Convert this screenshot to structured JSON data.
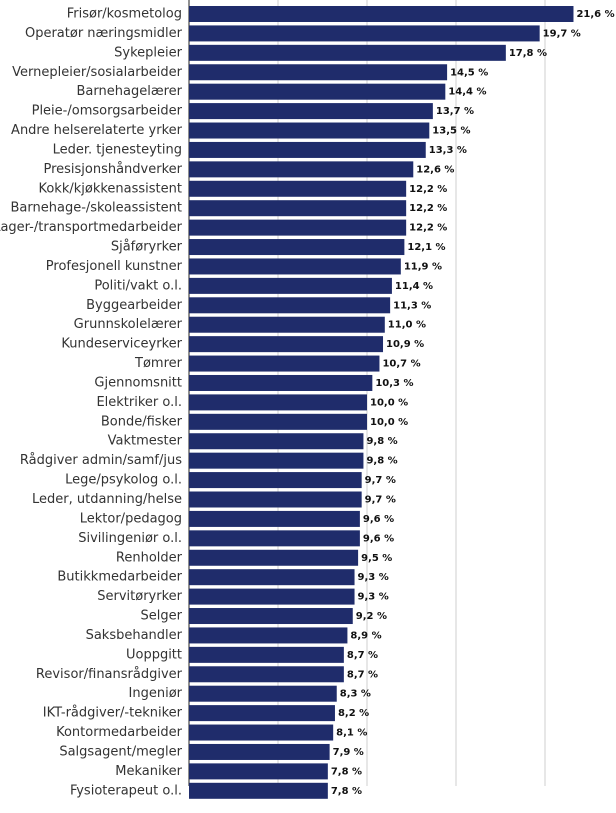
{
  "chart_data": {
    "type": "bar",
    "orientation": "horizontal",
    "categories": [
      "Frisør/kosmetolog",
      "Operatør næringsmidler",
      "Sykepleier",
      "Vernepleier/sosialarbeider",
      "Barnehagelærer",
      "Pleie-/omsorgsarbeider",
      "Andre helserelaterte yrker",
      "Leder. tjenesteyting",
      "Presisjonshåndverker",
      "Kokk/kjøkkenassistent",
      "Barnehage-/skoleassistent",
      "Lager-/transportmedarbeider",
      "Sjåføryrker",
      "Profesjonell kunstner",
      "Politi/vakt o.l.",
      "Byggearbeider",
      "Grunnskolelærer",
      "Kundeserviceyrker",
      "Tømrer",
      "Gjennomsnitt",
      "Elektriker o.l.",
      "Bonde/fisker",
      "Vaktmester",
      "Rådgiver admin/samf/jus",
      "Lege/psykolog o.l.",
      "Leder, utdanning/helse",
      "Lektor/pedagog",
      "Sivilingeniør o.l.",
      "Renholder",
      "Butikkmedarbeider",
      "Servitøryrker",
      "Selger",
      "Saksbehandler",
      "Uoppgitt",
      "Revisor/finansrådgiver",
      "Ingeniør",
      "IKT-rådgiver/-tekniker",
      "Kontormedarbeider",
      "Salgsagent/megler",
      "Mekaniker",
      "Fysioterapeut o.l."
    ],
    "values": [
      21.6,
      19.7,
      17.8,
      14.5,
      14.4,
      13.7,
      13.5,
      13.3,
      12.6,
      12.2,
      12.2,
      12.2,
      12.1,
      11.9,
      11.4,
      11.3,
      11.0,
      10.9,
      10.7,
      10.3,
      10.0,
      10.0,
      9.8,
      9.8,
      9.7,
      9.7,
      9.6,
      9.6,
      9.5,
      9.3,
      9.3,
      9.2,
      8.9,
      8.7,
      8.7,
      8.3,
      8.2,
      8.1,
      7.9,
      7.8,
      7.8
    ],
    "value_labels": [
      "21,6 %",
      "19,7 %",
      "17,8 %",
      "14,5 %",
      "14,4 %",
      "13,7 %",
      "13,5 %",
      "13,3 %",
      "12,6 %",
      "12,2 %",
      "12,2 %",
      "12,2 %",
      "12,1 %",
      "11,9 %",
      "11,4 %",
      "11,3 %",
      "11,0 %",
      "10,9 %",
      "10,7 %",
      "10,3 %",
      "10,0 %",
      "10,0 %",
      "9,8 %",
      "9,8 %",
      "9,7 %",
      "9,7 %",
      "9,6 %",
      "9,6 %",
      "9,5 %",
      "9,3 %",
      "9,3 %",
      "9,2 %",
      "8,9 %",
      "8,7 %",
      "8,7 %",
      "8,3 %",
      "8,2 %",
      "8,1 %",
      "7,9 %",
      "7,8 %",
      "7,8 %"
    ],
    "xlim": [
      0,
      25
    ],
    "x_gridlines": [
      0,
      5,
      10,
      15,
      20,
      25
    ],
    "grid": true,
    "legend": false,
    "bar_color": "#1f2c6b",
    "title": "",
    "xlabel": "",
    "ylabel": ""
  }
}
